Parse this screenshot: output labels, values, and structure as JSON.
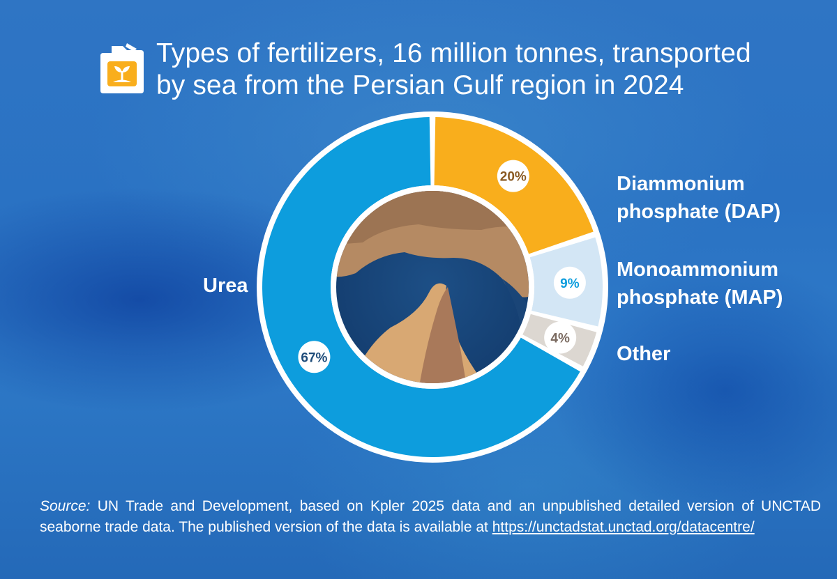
{
  "header": {
    "icon": "fuel-can-sprout-icon",
    "title_line1": "Types of fertilizers, 16 million tonnes, transported",
    "title_line2": "by sea from the Persian Gulf region in 2024"
  },
  "chart_data": {
    "type": "pie",
    "title": "Types of fertilizers, 16 million tonnes, transported by sea from the Persian Gulf region in 2024",
    "categories": [
      "Diammonium phosphate (DAP)",
      "Monoammonium phosphate (MAP)",
      "Other",
      "Urea"
    ],
    "values": [
      20,
      9,
      4,
      67
    ],
    "value_labels": [
      "20%",
      "9%",
      "4%",
      "67%"
    ],
    "colors": [
      "#f9ae1c",
      "#d3e6f5",
      "#dcd7d1",
      "#0d9ddd"
    ],
    "label_colors": [
      "#8a5a22",
      "#0d9ddd",
      "#7a6a60",
      "#1e4c7a"
    ],
    "hole": "satellite image",
    "legend": "labels beside slices"
  },
  "slice_labels": {
    "dap_line1": "Diammonium",
    "dap_line2": "phosphate (DAP)",
    "map_line1": "Monoammonium",
    "map_line2": "phosphate (MAP)",
    "other": "Other",
    "urea": "Urea"
  },
  "source": {
    "prefix": "Source:",
    "text": "UN Trade and Development, based on Kpler 2025 data and an unpublished detailed version of UNCTAD seaborne trade data. The published version of the data is available at",
    "link_line1": "https://unctadstat.unctad.org/",
    "link_line2": "datacentre/"
  }
}
